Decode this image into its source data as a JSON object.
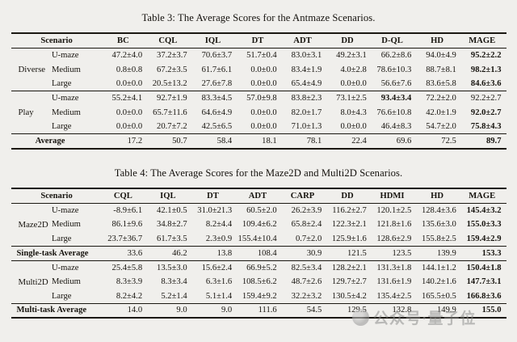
{
  "page": {
    "background": "#f0efec",
    "ink": "#17140f"
  },
  "watermark": {
    "icon": "circle-logo",
    "text": "公众号·量子位"
  },
  "tables": [
    {
      "title": "Table 3: The Average Scores for the Antmaze Scenarios.",
      "scenario_header": "Scenario",
      "columns": [
        "BC",
        "CQL",
        "IQL",
        "DT",
        "ADT",
        "DD",
        "D-QL",
        "HD",
        "MAGE"
      ],
      "sections": [
        {
          "type": "group",
          "name": "Diverse",
          "rows": [
            {
              "maze": "U-maze",
              "values": [
                "47.2±4.0",
                "37.2±3.7",
                "70.6±3.7",
                "51.7±0.4",
                "83.0±3.1",
                "49.2±3.1",
                "66.2±8.6",
                "94.0±4.9",
                "95.2±2.2"
              ],
              "bold": [
                8
              ]
            },
            {
              "maze": "Medium",
              "values": [
                "0.8±0.8",
                "67.2±3.5",
                "61.7±6.1",
                "0.0±0.0",
                "83.4±1.9",
                "4.0±2.8",
                "78.6±10.3",
                "88.7±8.1",
                "98.2±1.3"
              ],
              "bold": [
                8
              ]
            },
            {
              "maze": "Large",
              "values": [
                "0.0±0.0",
                "20.5±13.2",
                "27.6±7.8",
                "0.0±0.0",
                "65.4±4.9",
                "0.0±0.0",
                "56.6±7.6",
                "83.6±5.8",
                "84.6±3.6"
              ],
              "bold": [
                8
              ]
            }
          ]
        },
        {
          "type": "group",
          "name": "Play",
          "rows": [
            {
              "maze": "U-maze",
              "values": [
                "55.2±4.1",
                "92.7±1.9",
                "83.3±4.5",
                "57.0±9.8",
                "83.8±2.3",
                "73.1±2.5",
                "93.4±3.4",
                "72.2±2.0",
                "92.2±2.7"
              ],
              "bold": [
                6
              ]
            },
            {
              "maze": "Medium",
              "values": [
                "0.0±0.0",
                "65.7±11.6",
                "64.6±4.9",
                "0.0±0.0",
                "82.0±1.7",
                "8.0±4.3",
                "76.6±10.8",
                "42.0±1.9",
                "92.0±2.7"
              ],
              "bold": [
                8
              ]
            },
            {
              "maze": "Large",
              "values": [
                "0.0±0.0",
                "20.7±7.2",
                "42.5±6.5",
                "0.0±0.0",
                "71.0±1.3",
                "0.0±0.0",
                "46.4±8.3",
                "54.7±2.0",
                "75.8±4.3"
              ],
              "bold": [
                8
              ]
            }
          ]
        },
        {
          "type": "average",
          "label": "Average",
          "align": "center",
          "values": [
            "17.2",
            "50.7",
            "58.4",
            "18.1",
            "78.1",
            "22.4",
            "69.6",
            "72.5",
            "89.7"
          ],
          "bold": [
            8
          ]
        }
      ]
    },
    {
      "title": "Table 4: The Average Scores for the Maze2D and Multi2D Scenarios.",
      "scenario_header": "Scenario",
      "columns": [
        "CQL",
        "IQL",
        "DT",
        "ADT",
        "CARP",
        "DD",
        "HDMI",
        "HD",
        "MAGE"
      ],
      "sections": [
        {
          "type": "group",
          "name": "Maze2D",
          "rows": [
            {
              "maze": "U-maze",
              "values": [
                "-8.9±6.1",
                "42.1±0.5",
                "31.0±21.3",
                "60.5±2.0",
                "26.2±3.9",
                "116.2±2.7",
                "120.1±2.5",
                "128.4±3.6",
                "145.4±3.2"
              ],
              "bold": [
                8
              ]
            },
            {
              "maze": "Medium",
              "values": [
                "86.1±9.6",
                "34.8±2.7",
                "8.2±4.4",
                "109.4±6.2",
                "65.8±2.4",
                "122.3±2.1",
                "121.8±1.6",
                "135.6±3.0",
                "155.0±3.3"
              ],
              "bold": [
                8
              ]
            },
            {
              "maze": "Large",
              "values": [
                "23.7±36.7",
                "61.7±3.5",
                "2.3±0.9",
                "155.4±10.4",
                "0.7±2.0",
                "125.9±1.6",
                "128.6±2.9",
                "155.8±2.5",
                "159.4±2.9"
              ],
              "bold": [
                8
              ]
            }
          ]
        },
        {
          "type": "average",
          "label": "Single-task Average",
          "align": "left",
          "strong_rule": true,
          "values": [
            "33.6",
            "46.2",
            "13.8",
            "108.4",
            "30.9",
            "121.5",
            "123.5",
            "139.9",
            "153.3"
          ],
          "bold": [
            8
          ]
        },
        {
          "type": "group",
          "name": "Multi2D",
          "rows": [
            {
              "maze": "U-maze",
              "values": [
                "25.4±5.8",
                "13.5±3.0",
                "15.6±2.4",
                "66.9±5.2",
                "82.5±3.4",
                "128.2±2.1",
                "131.3±1.8",
                "144.1±1.2",
                "150.4±1.8"
              ],
              "bold": [
                8
              ]
            },
            {
              "maze": "Medium",
              "values": [
                "8.3±3.9",
                "8.3±3.4",
                "6.3±1.6",
                "108.5±6.2",
                "48.7±2.6",
                "129.7±2.7",
                "131.6±1.9",
                "140.2±1.6",
                "147.7±3.1"
              ],
              "bold": [
                8
              ]
            },
            {
              "maze": "Large",
              "values": [
                "8.2±4.2",
                "5.2±1.4",
                "5.1±1.4",
                "159.4±9.2",
                "32.2±3.2",
                "130.5±4.2",
                "135.4±2.5",
                "165.5±0.5",
                "166.8±3.6"
              ],
              "bold": [
                8
              ]
            }
          ]
        },
        {
          "type": "average",
          "label": "Multi-task Average",
          "align": "left",
          "values": [
            "14.0",
            "9.0",
            "9.0",
            "111.6",
            "54.5",
            "129.5",
            "132.8",
            "149.9",
            "155.0"
          ],
          "bold": [
            8
          ]
        }
      ]
    }
  ]
}
